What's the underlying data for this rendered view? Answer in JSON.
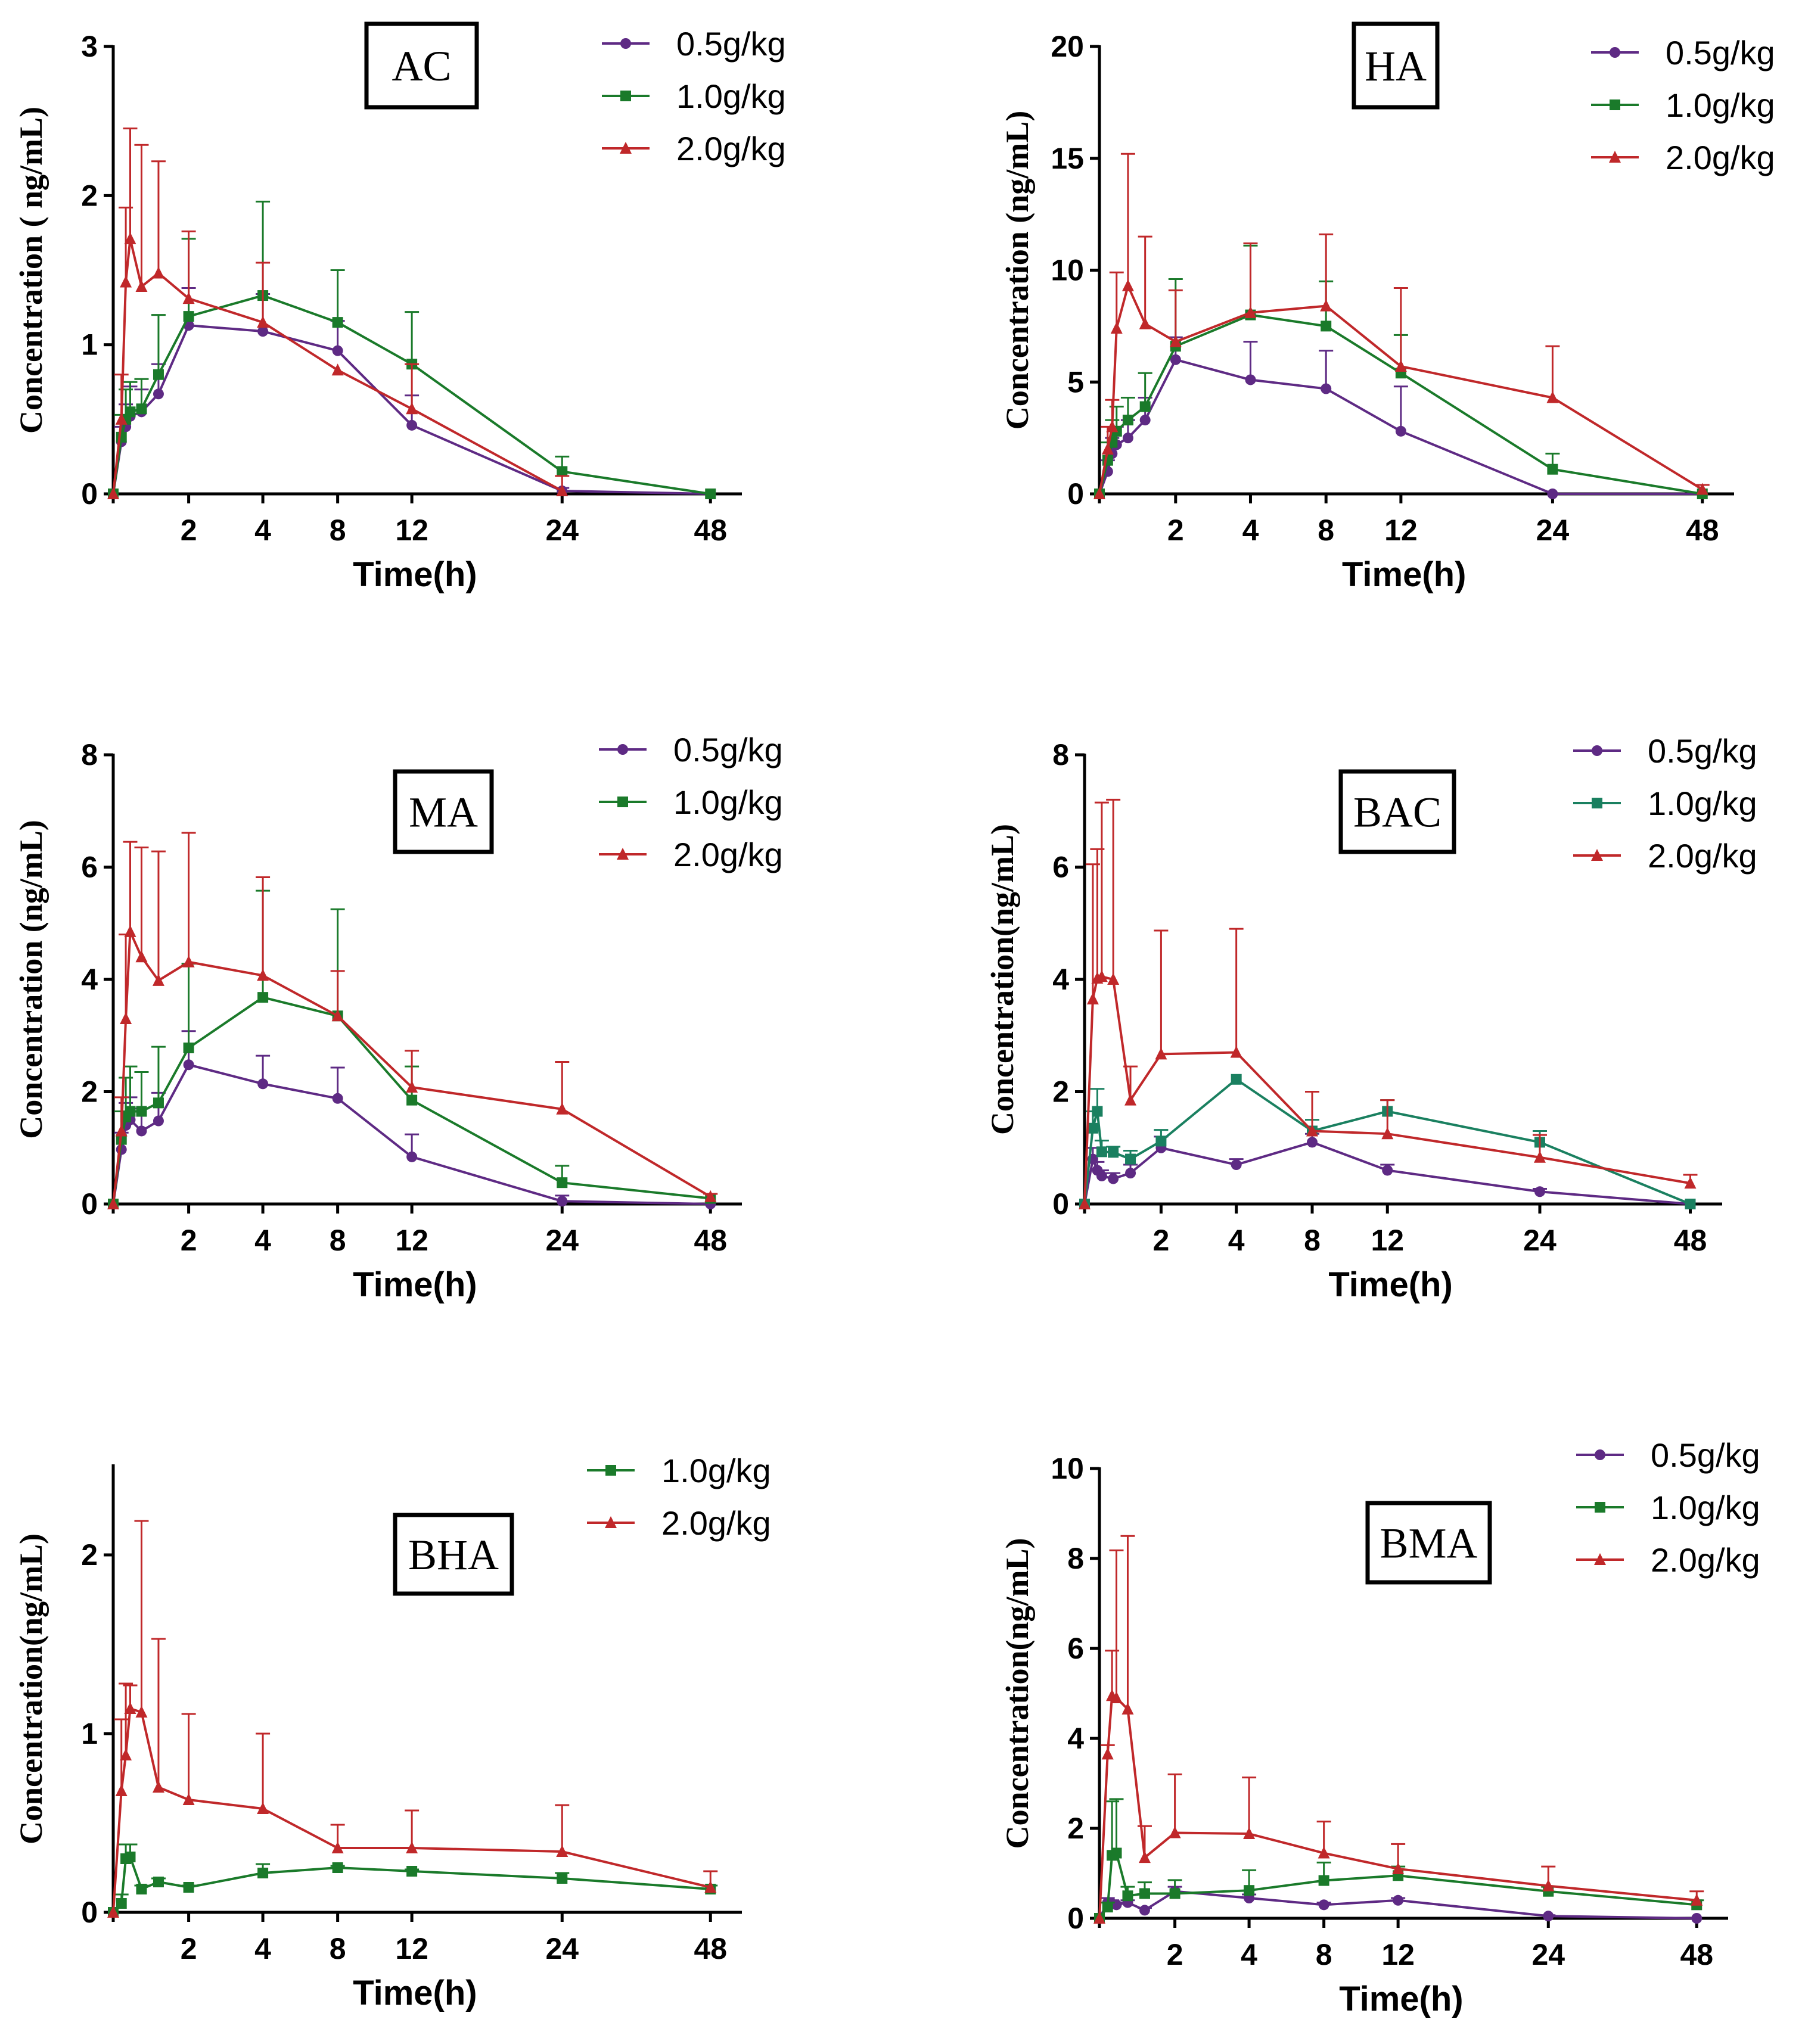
{
  "chart_data": [
    {
      "type": "line",
      "title": "AC",
      "xlabel": "Time(h)",
      "ylabel": "Concentration ( ng/mL)",
      "ylim": [
        0,
        3
      ],
      "yticks": [
        0,
        1,
        2,
        3
      ],
      "xtick_labels": [
        "2",
        "4",
        "8",
        "12",
        "24",
        "48"
      ],
      "x": [
        0,
        0.083,
        0.167,
        0.25,
        0.5,
        1,
        2,
        4,
        8,
        12,
        24,
        48
      ],
      "series": [
        {
          "name": "0.5g/kg",
          "color": "#5e2a84",
          "marker": "circle",
          "values": [
            0,
            0.35,
            0.45,
            0.52,
            0.55,
            0.67,
            1.13,
            1.09,
            0.96,
            0.46,
            0.02,
            0.0
          ],
          "err": [
            0,
            0.1,
            0.15,
            0.2,
            0.15,
            0.2,
            0.25,
            0.25,
            0.2,
            0.2,
            0.02,
            0.0
          ]
        },
        {
          "name": "1.0g/kg",
          "color": "#1a7a2a",
          "marker": "square",
          "values": [
            0,
            0.38,
            0.5,
            0.55,
            0.57,
            0.8,
            1.19,
            1.33,
            1.15,
            0.87,
            0.15,
            0.0
          ],
          "err": [
            0,
            0.15,
            0.2,
            0.2,
            0.2,
            0.4,
            0.52,
            0.63,
            0.35,
            0.35,
            0.1,
            0.0
          ]
        },
        {
          "name": "2.0g/kg",
          "color": "#c0282a",
          "marker": "triangle",
          "values": [
            0,
            0.5,
            1.42,
            1.71,
            1.39,
            1.48,
            1.31,
            1.15,
            0.83,
            0.57,
            0.02,
            null
          ],
          "err": [
            0,
            0.3,
            0.5,
            0.74,
            0.95,
            0.75,
            0.45,
            0.4,
            0.0,
            0.3,
            0.1,
            null
          ]
        }
      ]
    },
    {
      "type": "line",
      "title": "HA",
      "xlabel": "Time(h)",
      "ylabel": "Concentration (ng/mL)",
      "ylim": [
        0,
        20
      ],
      "yticks": [
        0,
        5,
        10,
        15,
        20
      ],
      "xtick_labels": [
        "2",
        "4",
        "8",
        "12",
        "24",
        "48"
      ],
      "x": [
        0,
        0.083,
        0.167,
        0.25,
        0.5,
        1,
        2,
        4,
        8,
        12,
        24,
        48
      ],
      "series": [
        {
          "name": "0.5g/kg",
          "color": "#5e2a84",
          "marker": "circle",
          "values": [
            0,
            1.0,
            1.8,
            2.2,
            2.5,
            3.3,
            6.0,
            5.1,
            4.7,
            2.8,
            0.0,
            0.0
          ],
          "err": [
            0,
            0.5,
            0.7,
            0.8,
            0.8,
            1.0,
            1.0,
            1.7,
            1.7,
            2.0,
            0.0,
            0.0
          ]
        },
        {
          "name": "1.0g/kg",
          "color": "#1a7a2a",
          "marker": "square",
          "values": [
            0,
            1.5,
            2.3,
            2.8,
            3.3,
            3.9,
            6.6,
            8.0,
            7.5,
            5.4,
            1.1,
            0.0
          ],
          "err": [
            0,
            0.8,
            1.0,
            1.1,
            1.0,
            1.5,
            3.0,
            3.1,
            2.0,
            1.7,
            0.7,
            0.0
          ]
        },
        {
          "name": "2.0g/kg",
          "color": "#c0282a",
          "marker": "triangle",
          "values": [
            0,
            2.0,
            3.0,
            7.4,
            9.3,
            7.6,
            6.8,
            8.1,
            8.4,
            5.7,
            4.3,
            0.2
          ],
          "err": [
            0,
            1.0,
            1.2,
            2.5,
            5.9,
            3.9,
            2.3,
            3.1,
            3.2,
            3.5,
            2.3,
            0.2
          ]
        }
      ]
    },
    {
      "type": "line",
      "title": "MA",
      "xlabel": "Time(h)",
      "ylabel": "Concentration (ng/mL)",
      "ylim": [
        0,
        8
      ],
      "yticks": [
        0,
        2,
        4,
        6,
        8
      ],
      "xtick_labels": [
        "2",
        "4",
        "8",
        "12",
        "24",
        "48"
      ],
      "x": [
        0,
        0.083,
        0.167,
        0.25,
        0.5,
        1,
        2,
        4,
        8,
        12,
        24,
        48
      ],
      "series": [
        {
          "name": "0.5g/kg",
          "color": "#5e2a84",
          "marker": "circle",
          "values": [
            0,
            0.97,
            1.4,
            1.5,
            1.3,
            1.48,
            2.48,
            2.14,
            1.88,
            0.84,
            0.05,
            0.0
          ],
          "err": [
            0,
            0.3,
            0.4,
            0.4,
            0.4,
            0.5,
            0.6,
            0.5,
            0.55,
            0.4,
            0.1,
            0.0
          ]
        },
        {
          "name": "1.0g/kg",
          "color": "#1a7a2a",
          "marker": "square",
          "values": [
            0,
            1.15,
            1.55,
            1.65,
            1.65,
            1.8,
            2.78,
            3.68,
            3.35,
            1.85,
            0.38,
            0.1
          ],
          "err": [
            0,
            0.5,
            0.7,
            0.8,
            0.7,
            1.0,
            1.5,
            1.9,
            1.9,
            0.6,
            0.3,
            0.0
          ]
        },
        {
          "name": "2.0g/kg",
          "color": "#c0282a",
          "marker": "triangle",
          "values": [
            0,
            1.3,
            3.3,
            4.85,
            4.4,
            3.98,
            4.31,
            4.07,
            3.35,
            2.08,
            1.69,
            0.13
          ],
          "err": [
            0,
            0.6,
            1.5,
            1.6,
            1.95,
            2.3,
            2.3,
            1.75,
            0.8,
            0.65,
            0.84,
            0.05
          ]
        }
      ]
    },
    {
      "type": "line",
      "title": "BAC",
      "xlabel": "Time(h)",
      "ylabel": "Concentration(ng/mL)",
      "ylim": [
        0,
        8
      ],
      "yticks": [
        0,
        2,
        4,
        6,
        8
      ],
      "xtick_labels": [
        "2",
        "4",
        "8",
        "12",
        "24",
        "48"
      ],
      "x": [
        0,
        0.083,
        0.167,
        0.25,
        0.5,
        1,
        2,
        4,
        8,
        12,
        24,
        48
      ],
      "series": [
        {
          "name": "0.5g/kg",
          "color": "#5e2a84",
          "marker": "circle",
          "values": [
            0,
            0.8,
            0.6,
            0.5,
            0.45,
            0.55,
            1.0,
            0.7,
            1.1,
            0.6,
            0.22,
            0.0
          ],
          "err": [
            0,
            0.2,
            0.15,
            0.1,
            0.1,
            0.15,
            0.2,
            0.1,
            0.15,
            0.1,
            0.05,
            0.0
          ]
        },
        {
          "name": "1.0g/kg",
          "color": "#1a8060",
          "marker": "square",
          "values": [
            0,
            1.35,
            1.65,
            0.93,
            0.92,
            0.8,
            1.12,
            2.22,
            1.3,
            1.65,
            1.1,
            0.0
          ],
          "err": [
            0,
            0.3,
            0.4,
            0.2,
            0.1,
            0.15,
            0.2,
            0.0,
            0.2,
            0.2,
            0.2,
            0.0
          ]
        },
        {
          "name": "2.0g/kg",
          "color": "#c0282a",
          "marker": "triangle",
          "values": [
            0,
            3.65,
            4.02,
            4.05,
            4.0,
            1.85,
            2.67,
            2.7,
            1.3,
            1.25,
            0.83,
            0.37
          ],
          "err": [
            0,
            2.4,
            2.3,
            3.1,
            3.2,
            0.6,
            2.2,
            2.2,
            0.7,
            0.6,
            0.4,
            0.15
          ]
        }
      ]
    },
    {
      "type": "line",
      "title": "BHA",
      "xlabel": "Time(h)",
      "ylabel": "Concentration(ng/mL)",
      "ylim": [
        0,
        2.5
      ],
      "yticks": [
        0,
        1,
        2
      ],
      "xtick_labels": [
        "2",
        "4",
        "8",
        "12",
        "24",
        "48"
      ],
      "x": [
        0,
        0.083,
        0.167,
        0.25,
        0.5,
        1,
        2,
        4,
        8,
        12,
        24,
        48
      ],
      "series": [
        {
          "name": "1.0g/kg",
          "color": "#1a7a2a",
          "marker": "square",
          "values": [
            0,
            0.05,
            0.3,
            0.31,
            0.13,
            0.17,
            0.14,
            0.22,
            0.25,
            0.23,
            0.19,
            0.13
          ],
          "err": [
            0,
            0.05,
            0.08,
            0.07,
            0.02,
            0.02,
            0.01,
            0.05,
            0.01,
            0.01,
            0.03,
            0.02
          ]
        },
        {
          "name": "2.0g/kg",
          "color": "#c0282a",
          "marker": "triangle",
          "values": [
            0,
            0.68,
            0.88,
            1.14,
            1.12,
            0.7,
            0.63,
            0.58,
            0.36,
            0.36,
            0.34,
            0.14
          ],
          "err": [
            0,
            0.4,
            0.4,
            0.13,
            1.07,
            0.83,
            0.48,
            0.42,
            0.13,
            0.21,
            0.26,
            0.09
          ]
        }
      ]
    },
    {
      "type": "line",
      "title": "BMA",
      "xlabel": "Time(h)",
      "ylabel": "Concentration(ng/mL)",
      "ylim": [
        0,
        10
      ],
      "yticks": [
        0,
        2,
        4,
        6,
        8,
        10
      ],
      "xtick_labels": [
        "2",
        "4",
        "8",
        "12",
        "24",
        "48"
      ],
      "x": [
        0,
        0.083,
        0.167,
        0.25,
        0.5,
        1,
        2,
        4,
        8,
        12,
        24,
        48
      ],
      "series": [
        {
          "name": "0.5g/kg",
          "color": "#5e2a84",
          "marker": "circle",
          "values": [
            0,
            0.35,
            0.32,
            0.3,
            0.35,
            0.18,
            0.6,
            0.45,
            0.3,
            0.4,
            0.05,
            0.0
          ],
          "err": [
            0,
            0.1,
            0.08,
            0.05,
            0.05,
            0.05,
            0.1,
            0.08,
            0.05,
            0.05,
            0.02,
            0.0
          ]
        },
        {
          "name": "1.0g/kg",
          "color": "#1a7a2a",
          "marker": "square",
          "values": [
            0,
            0.25,
            1.4,
            1.45,
            0.5,
            0.55,
            0.55,
            0.62,
            0.84,
            0.95,
            0.6,
            0.3
          ],
          "err": [
            0,
            0.1,
            1.2,
            1.2,
            0.2,
            0.25,
            0.3,
            0.45,
            0.4,
            0.2,
            0.1,
            0.1
          ]
        },
        {
          "name": "2.0g/kg",
          "color": "#c0282a",
          "marker": "triangle",
          "values": [
            0,
            3.65,
            4.95,
            4.9,
            4.65,
            1.35,
            1.9,
            1.88,
            1.45,
            1.1,
            0.72,
            0.4
          ],
          "err": [
            0,
            0.2,
            1.0,
            3.28,
            3.85,
            0.7,
            1.3,
            1.25,
            0.7,
            0.55,
            0.43,
            0.2
          ]
        }
      ]
    }
  ]
}
